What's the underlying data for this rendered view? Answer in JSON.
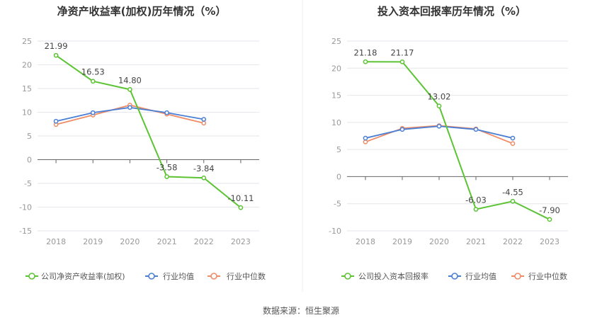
{
  "source_note": "数据来源：恒生聚源",
  "colors": {
    "company": "#5cc433",
    "industry_avg": "#4a7fd6",
    "industry_median": "#ef8c66",
    "grid": "#e6e6ec",
    "axis_text": "#999999",
    "title_text": "#333333",
    "label_text": "#444444"
  },
  "chart_data": [
    {
      "type": "line",
      "title": "净资产收益率(加权)历年情况（%）",
      "categories": [
        "2018",
        "2019",
        "2020",
        "2021",
        "2022",
        "2023"
      ],
      "ylim": [
        -15,
        25
      ],
      "yticks": [
        "25",
        "20",
        "15",
        "10",
        "5",
        "0",
        "-5",
        "-10",
        "-15"
      ],
      "grid": true,
      "legend_position": "bottom",
      "series": [
        {
          "name": "公司净资产收益率(加权)",
          "values": [
            21.99,
            16.53,
            14.8,
            -3.58,
            -3.84,
            -10.11
          ],
          "labels": [
            "21.99",
            "16.53",
            "14.80",
            "-3.58",
            "-3.84",
            "-10.11"
          ]
        },
        {
          "name": "行业均值",
          "values": [
            8.1,
            9.9,
            11.0,
            9.9,
            8.5,
            null
          ]
        },
        {
          "name": "行业中位数",
          "values": [
            7.4,
            9.4,
            11.5,
            9.6,
            7.7,
            null
          ]
        }
      ]
    },
    {
      "type": "line",
      "title": "投入资本回报率历年情况（%）",
      "categories": [
        "2018",
        "2019",
        "2020",
        "2021",
        "2022",
        "2023"
      ],
      "ylim": [
        -10,
        25
      ],
      "yticks": [
        "25",
        "20",
        "15",
        "10",
        "5",
        "0",
        "-5",
        "-10"
      ],
      "grid": true,
      "legend_position": "bottom",
      "series": [
        {
          "name": "公司投入资本回报率",
          "values": [
            21.18,
            21.17,
            13.02,
            -6.03,
            -4.55,
            -7.9
          ],
          "labels": [
            "21.18",
            "21.17",
            "13.02",
            "-6.03",
            "-4.55",
            "-7.90"
          ]
        },
        {
          "name": "行业均值",
          "values": [
            7.1,
            8.7,
            9.3,
            8.7,
            7.1,
            null
          ]
        },
        {
          "name": "行业中位数",
          "values": [
            6.4,
            8.9,
            9.4,
            8.8,
            6.1,
            null
          ]
        }
      ]
    }
  ]
}
